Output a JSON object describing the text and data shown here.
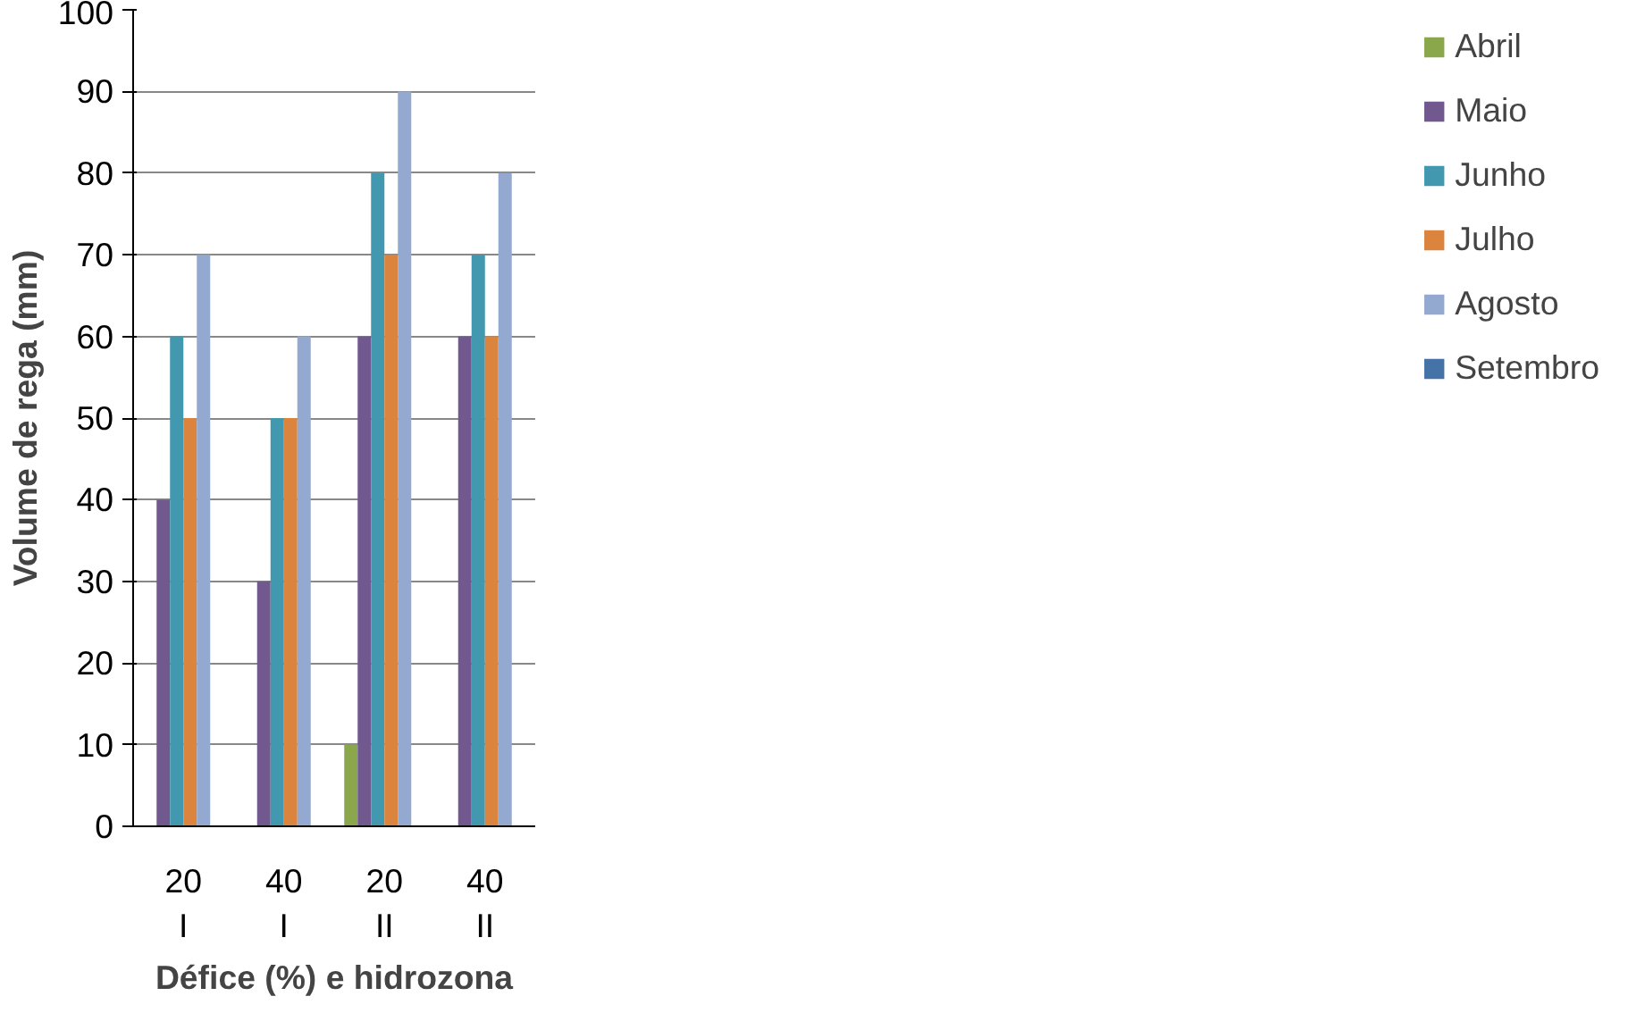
{
  "chart_data": {
    "type": "bar",
    "xlabel": "Défice (%) e hidrozona",
    "ylabel": "Volume de rega (mm)",
    "categories": [
      "20\nI",
      "40\nI",
      "20\nII",
      "40\nII"
    ],
    "series": [
      {
        "name": "Abril",
        "color": "#8aa84b",
        "values": [
          0,
          0,
          10,
          0
        ]
      },
      {
        "name": "Maio",
        "color": "#71588f",
        "values": [
          40,
          30,
          60,
          60
        ]
      },
      {
        "name": "Junho",
        "color": "#4198af",
        "values": [
          60,
          50,
          80,
          70
        ]
      },
      {
        "name": "Julho",
        "color": "#db843d",
        "values": [
          50,
          50,
          70,
          60
        ]
      },
      {
        "name": "Agosto",
        "color": "#93a9cf",
        "values": [
          70,
          60,
          90,
          80
        ]
      },
      {
        "name": "Setembro",
        "color": "#4572a7",
        "values": [
          0,
          0,
          0,
          0
        ]
      }
    ],
    "ylim": [
      0,
      100
    ],
    "yticks": [
      0,
      10,
      20,
      30,
      40,
      50,
      60,
      70,
      80,
      90,
      100
    ],
    "grid": "y",
    "legend": "right"
  }
}
